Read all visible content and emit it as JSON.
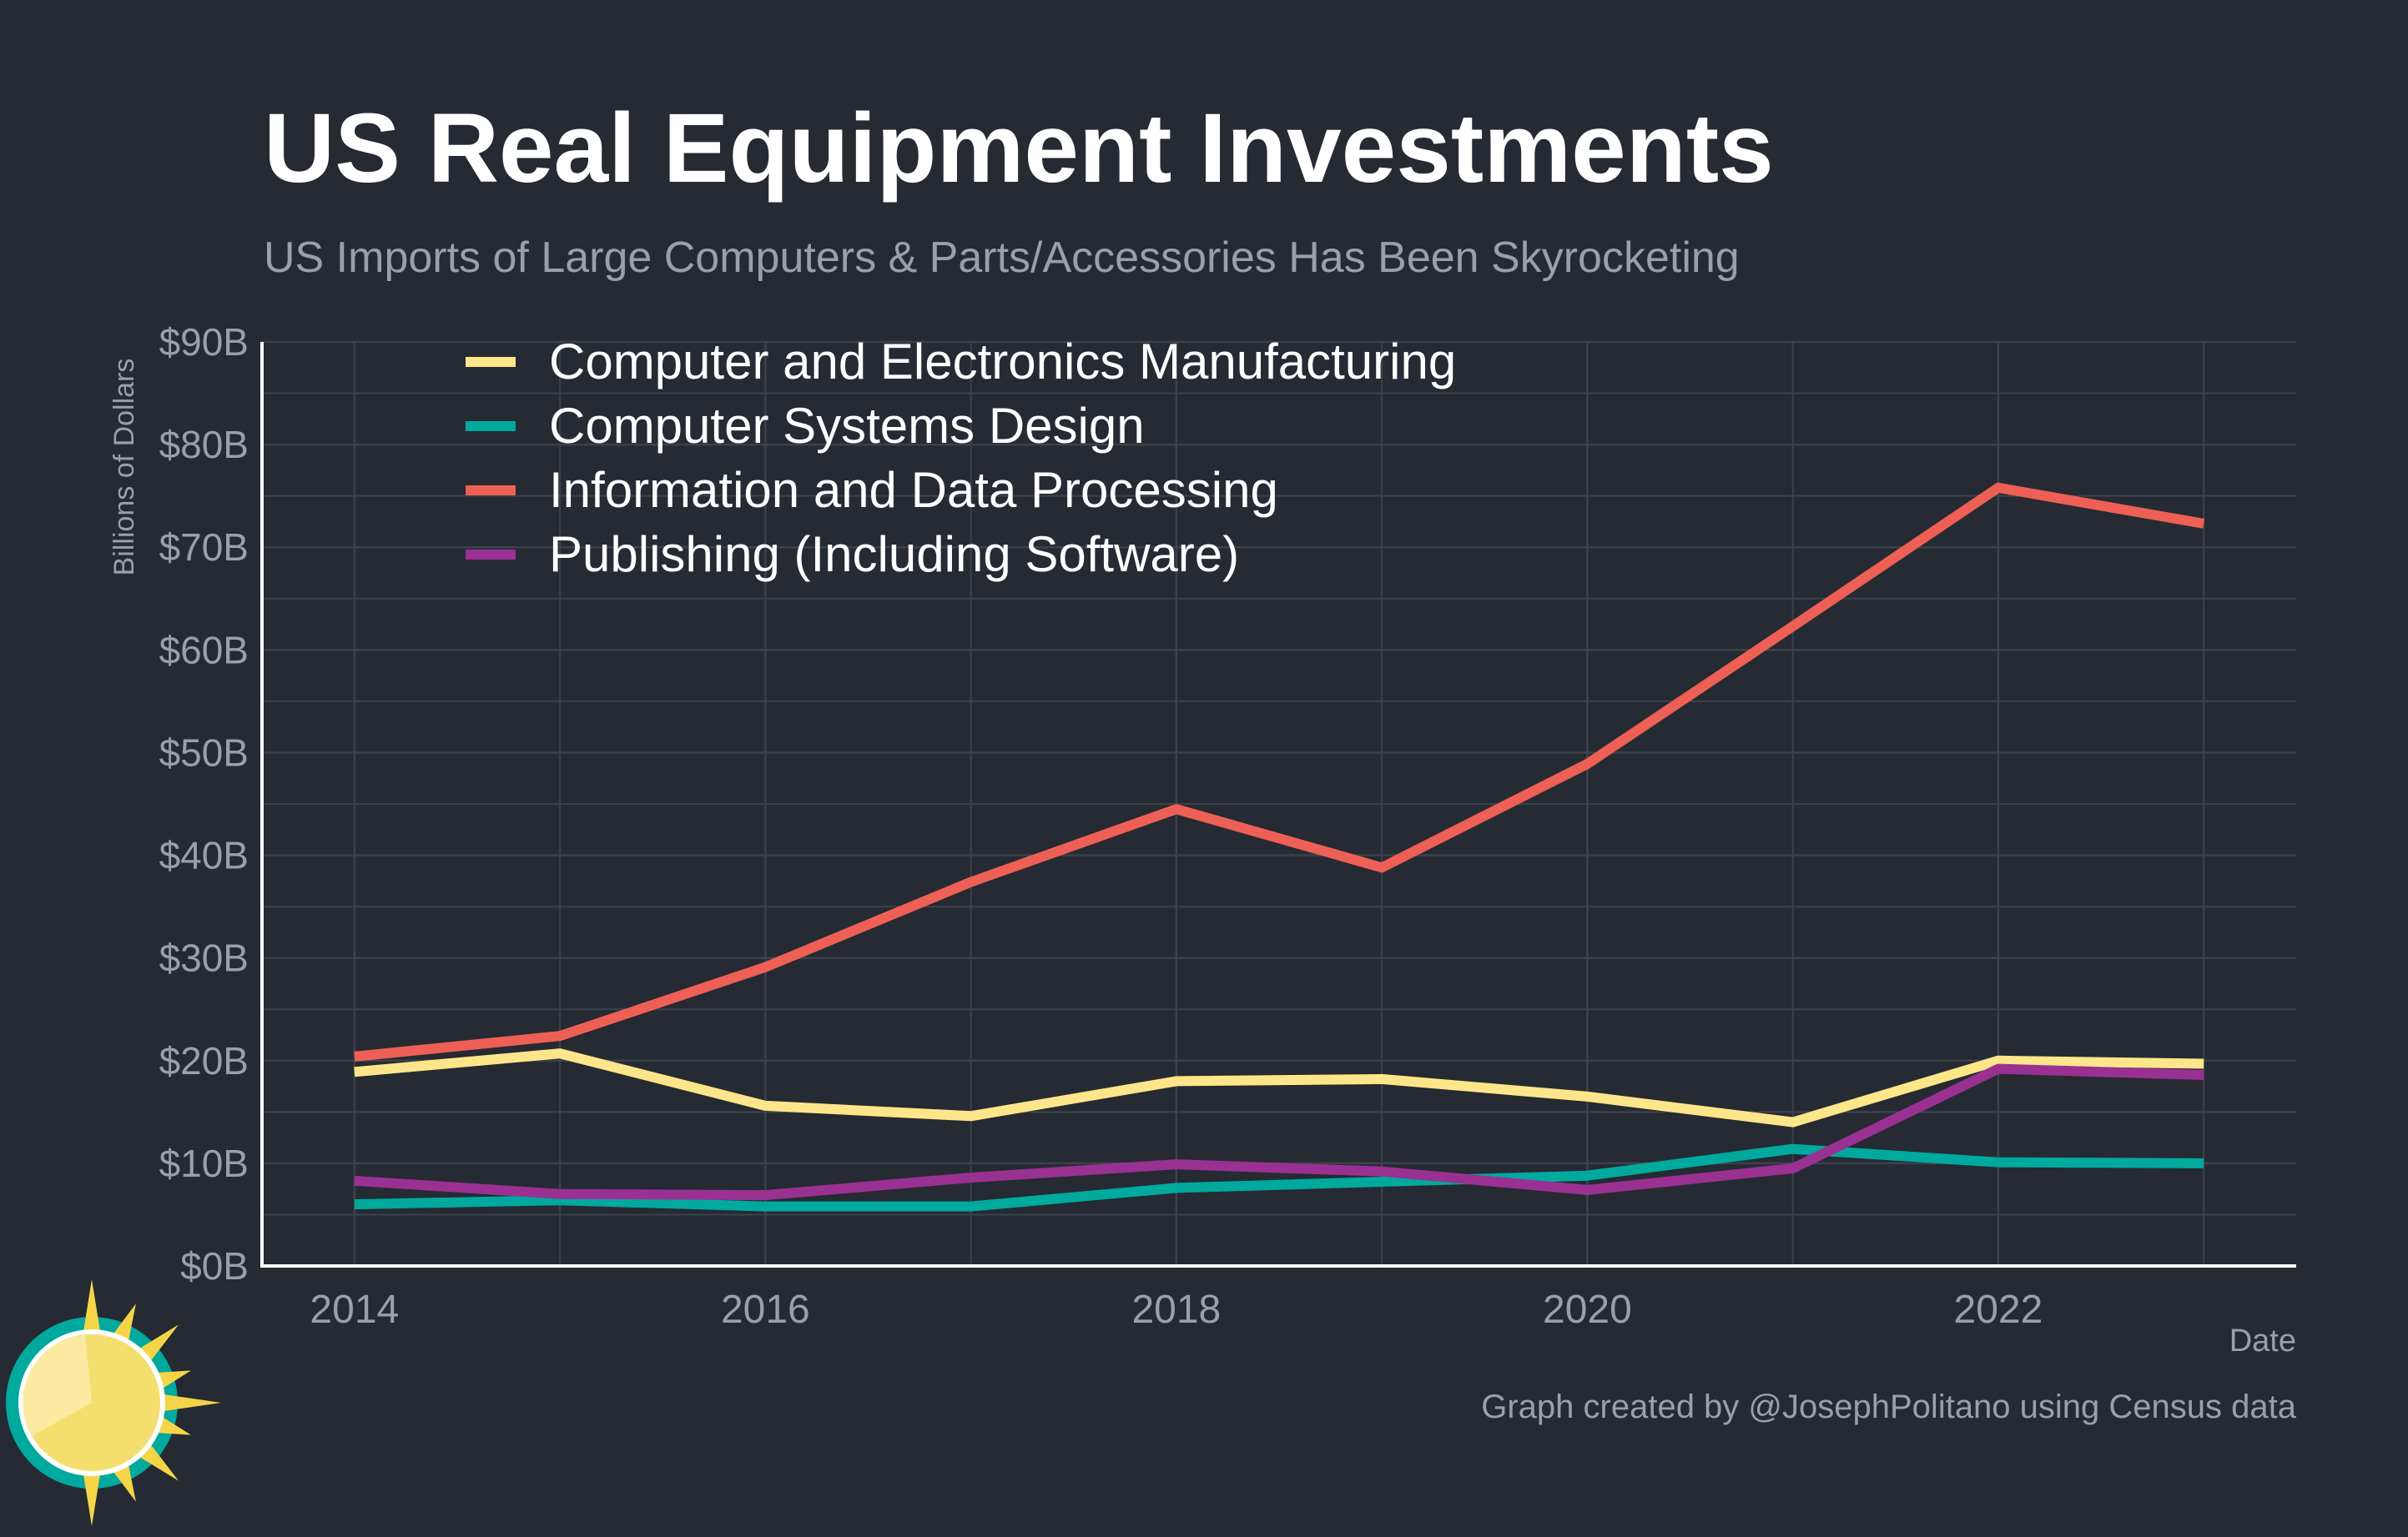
{
  "title": "US Real Equipment Investments",
  "subtitle": "US Imports of Large Computers & Parts/Accessories Has Been Skyrocketing",
  "caption": "Graph created by @JosephPolitano using Census data",
  "colors": {
    "background": "#252a33",
    "grid": "#3c424c",
    "axis": "#ffffff",
    "text_muted": "#9aa0a8"
  },
  "chart_data": {
    "type": "line",
    "xlabel": "Date",
    "ylabel": "Billions of Dollars",
    "xlim": [
      2013.55,
      2023.45
    ],
    "ylim": [
      0,
      90
    ],
    "x_ticks": [
      2014,
      2016,
      2018,
      2020,
      2022
    ],
    "x_tick_labels": [
      "2014",
      "2016",
      "2018",
      "2020",
      "2022"
    ],
    "y_ticks": [
      0,
      10,
      20,
      30,
      40,
      50,
      60,
      70,
      80,
      90
    ],
    "y_tick_labels": [
      "$0B",
      "$10B",
      "$20B",
      "$30B",
      "$40B",
      "$50B",
      "$60B",
      "$70B",
      "$80B",
      "$90B"
    ],
    "x_minor_gridlines": [
      2015,
      2017,
      2019,
      2021,
      2023
    ],
    "y_minor_gridlines": [
      5,
      15,
      25,
      35,
      45,
      55,
      65,
      75,
      85
    ],
    "grid": true,
    "legend_position": "top-left",
    "x": [
      2014,
      2015,
      2016,
      2017,
      2018,
      2019,
      2020,
      2021,
      2022,
      2023
    ],
    "series": [
      {
        "name": "Computer and Electronics Manufacturing",
        "color": "#fde68a",
        "values": [
          18.9,
          20.7,
          15.6,
          14.6,
          18.0,
          18.2,
          16.5,
          14.0,
          20.0,
          19.7
        ]
      },
      {
        "name": "Computer Systems Design",
        "color": "#00a99d",
        "values": [
          6.0,
          6.4,
          5.8,
          5.8,
          7.6,
          8.2,
          8.8,
          11.4,
          10.1,
          10.0
        ]
      },
      {
        "name": "Information and Data Processing",
        "color": "#ee6055",
        "values": [
          20.4,
          22.4,
          29.1,
          37.4,
          44.5,
          38.8,
          48.9,
          62.3,
          75.8,
          72.3
        ]
      },
      {
        "name": "Publishing (Including Software)",
        "color": "#9a3192",
        "values": [
          8.3,
          7.0,
          6.9,
          8.6,
          9.9,
          9.2,
          7.4,
          9.5,
          19.2,
          18.6
        ]
      }
    ]
  }
}
